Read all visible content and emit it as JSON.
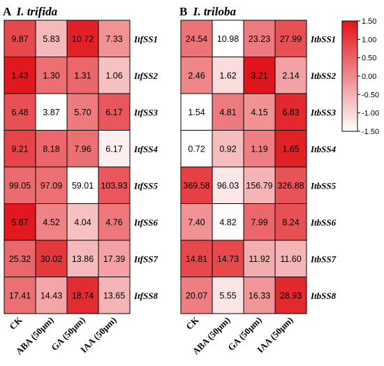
{
  "chart_data": [
    {
      "type": "heatmap",
      "panel_letter": "A",
      "title": "I. trifida",
      "columns": [
        "CK",
        "ABA (50μm)",
        "GA (50μm)",
        "IAA (50μm)"
      ],
      "rows": [
        "ItfSS1",
        "ItfSS2",
        "ItfSS3",
        "ItfSS4",
        "ItfSS5",
        "ItfSS6",
        "ItfSS7",
        "ItfSS8"
      ],
      "values": [
        [
          "9.87",
          "5.83",
          "10.72",
          "7.33"
        ],
        [
          "1.43",
          "1.30",
          "1.31",
          "1.06"
        ],
        [
          "6.48",
          "3.87",
          "5.70",
          "6.17"
        ],
        [
          "9.21",
          "8.18",
          "7.96",
          "6.17"
        ],
        [
          "99.05",
          "97.09",
          "59.01",
          "103.93"
        ],
        [
          "5.87",
          "4.52",
          "4.04",
          "4.76"
        ],
        [
          "25.32",
          "30.02",
          "13.86",
          "17.39"
        ],
        [
          "17.41",
          "14.43",
          "18.74",
          "13.65"
        ]
      ],
      "scaled": [
        [
          0.85,
          -0.6,
          1.35,
          -0.1
        ],
        [
          1.45,
          0.35,
          0.45,
          -0.7
        ],
        [
          0.75,
          -1.5,
          0.2,
          0.65
        ],
        [
          0.9,
          0.45,
          0.35,
          -1.3
        ],
        [
          0.4,
          0.35,
          -1.5,
          0.65
        ],
        [
          1.45,
          0.1,
          -0.7,
          0.25
        ],
        [
          0.45,
          1.05,
          -0.6,
          -0.3
        ],
        [
          0.35,
          -0.35,
          1.2,
          -0.55
        ]
      ]
    },
    {
      "type": "heatmap",
      "panel_letter": "B",
      "title": "I. triloba",
      "columns": [
        "CK",
        "ABA (50μm)",
        "GA (50μm)",
        "IAA (50μm)"
      ],
      "rows": [
        "ItbSS1",
        "ItbSS2",
        "ItbSS3",
        "ItbSS4",
        "ItbSS5",
        "ItbSS6",
        "ItbSS7",
        "ItbSS8"
      ],
      "values": [
        [
          "24.54",
          "10.98",
          "23.23",
          "27.99"
        ],
        [
          "2.46",
          "1.62",
          "3.21",
          "2.14"
        ],
        [
          "1.54",
          "4.81",
          "4.15",
          "6.83"
        ],
        [
          "0.72",
          "0.92",
          "1.19",
          "1.65"
        ],
        [
          "369.58",
          "96.03",
          "156.79",
          "326.88"
        ],
        [
          "7.40",
          "4.82",
          "7.99",
          "8.24"
        ],
        [
          "14.81",
          "14.73",
          "11.92",
          "11.60"
        ],
        [
          "20.07",
          "5.55",
          "16.33",
          "28.93"
        ]
      ],
      "scaled": [
        [
          0.3,
          -1.5,
          0.2,
          0.75
        ],
        [
          0.05,
          -1.05,
          1.5,
          -0.3
        ],
        [
          -1.5,
          0.2,
          -0.1,
          1.25
        ],
        [
          -1.5,
          -0.65,
          0.15,
          1.35
        ],
        [
          0.95,
          -1.2,
          -0.55,
          0.7
        ],
        [
          -0.1,
          -1.45,
          0.45,
          0.75
        ],
        [
          0.85,
          0.85,
          -0.45,
          -0.55
        ],
        [
          0.15,
          -1.15,
          -0.15,
          1.25
        ]
      ]
    }
  ],
  "colorbar": {
    "ticks": [
      "1.50",
      "1.00",
      "0.50",
      "0.00",
      "-0.50",
      "-1.00",
      "-1.50"
    ],
    "range": [
      -1.5,
      1.5
    ],
    "low_color": "#ffffff",
    "high_color": "#e0151b"
  }
}
